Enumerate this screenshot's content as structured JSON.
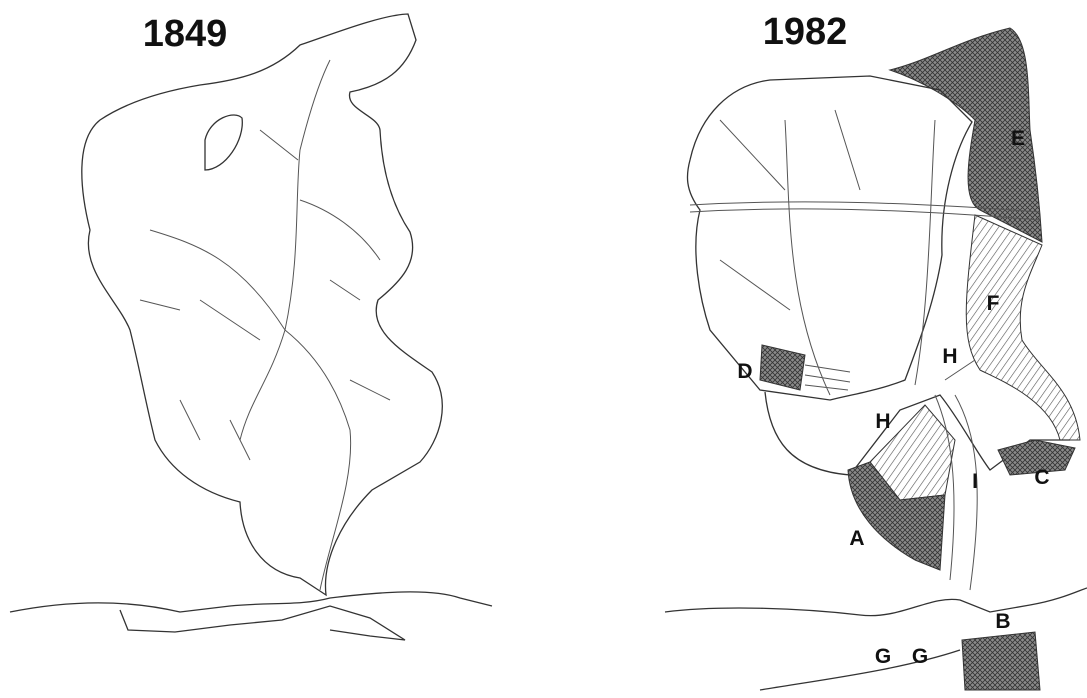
{
  "panels": [
    {
      "title": "1849"
    },
    {
      "title": "1982",
      "labels": [
        "E",
        "F",
        "H",
        "D",
        "H",
        "I",
        "C",
        "A",
        "B",
        "G",
        "G"
      ]
    }
  ]
}
